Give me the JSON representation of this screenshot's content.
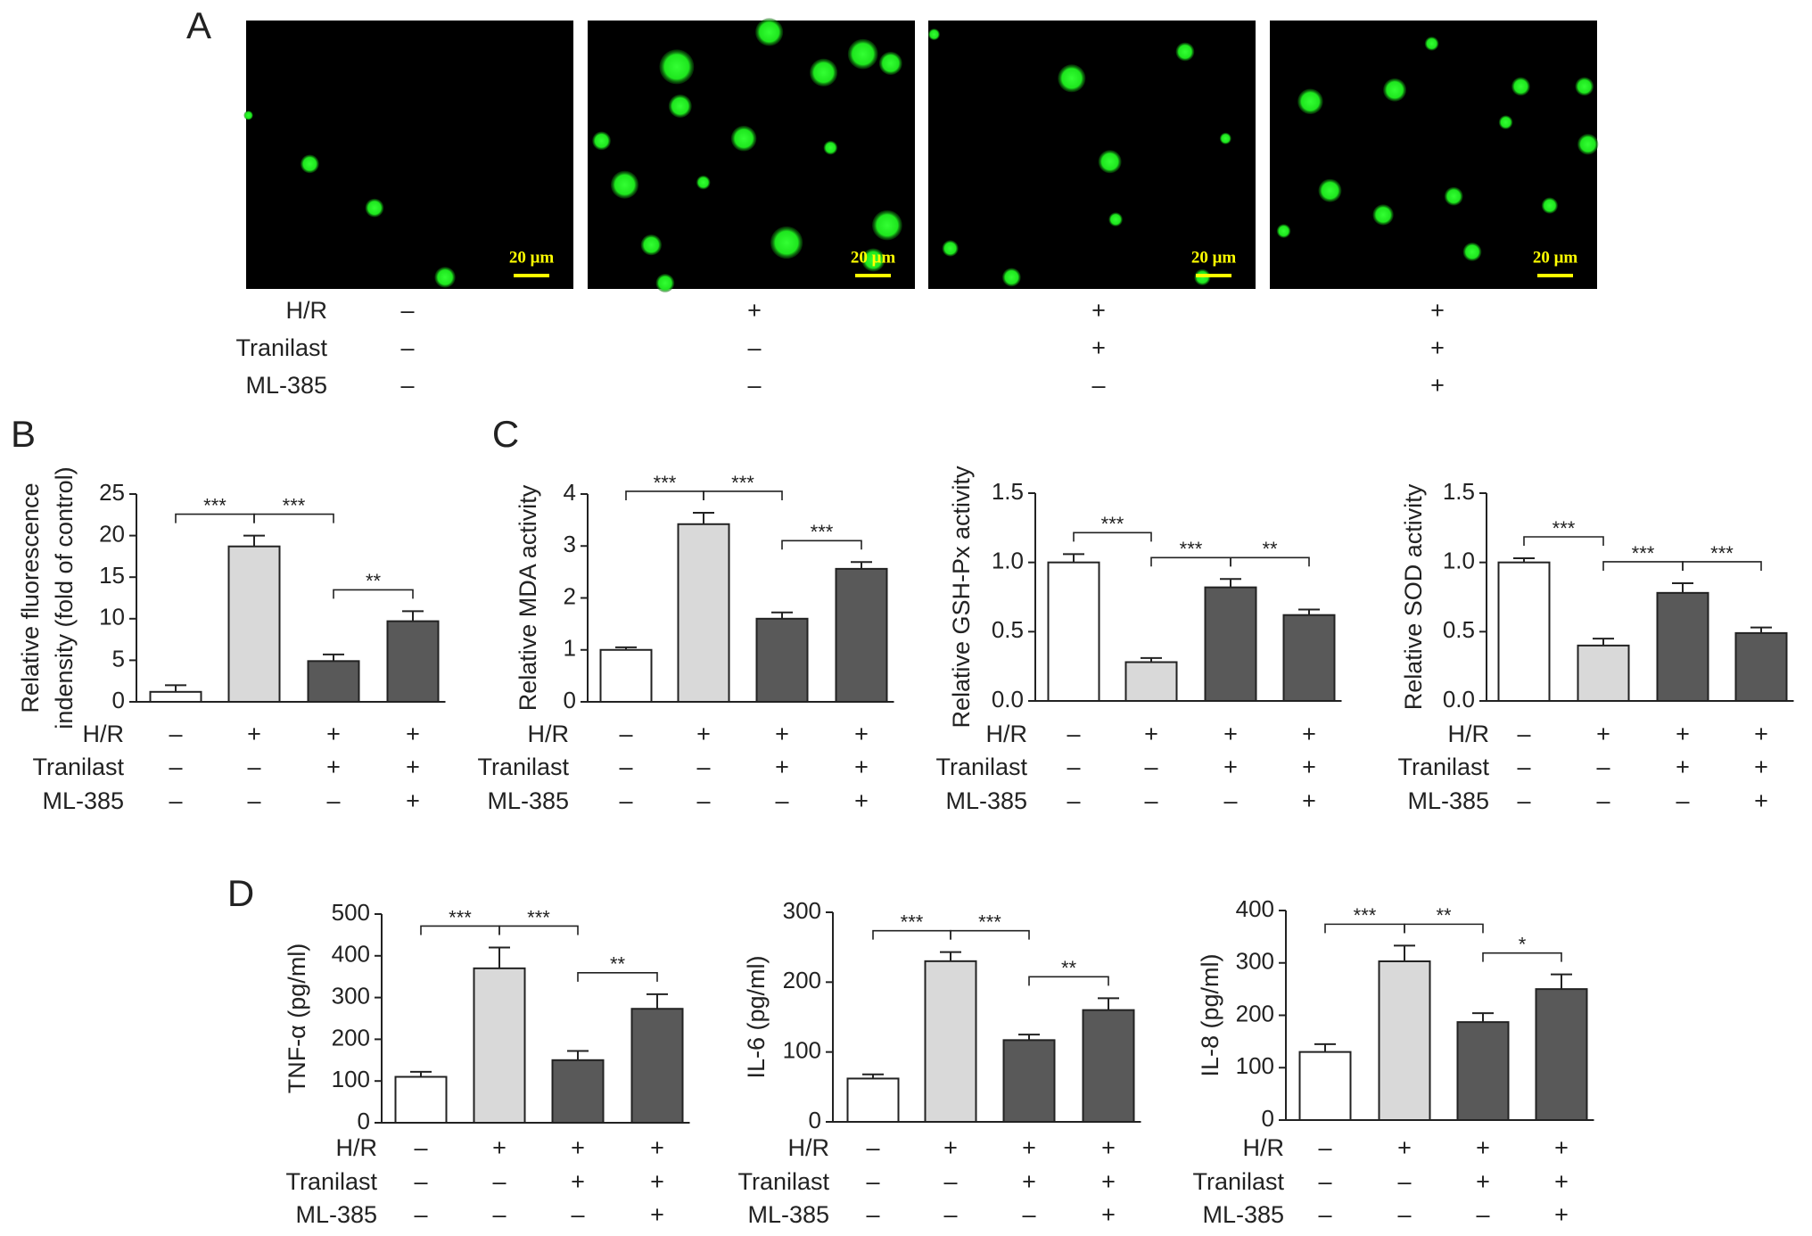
{
  "panel_a": {
    "label": "A",
    "scale_bars": [
      "20 μm",
      "20 μm",
      "20 μm",
      "20 μm"
    ],
    "treatments": [
      {
        "name": "H/R",
        "signs": [
          "–",
          "+",
          "+",
          "+"
        ]
      },
      {
        "name": "Tranilast",
        "signs": [
          "–",
          "–",
          "+",
          "+"
        ]
      },
      {
        "name": "ML-385",
        "signs": [
          "–",
          "–",
          "–",
          "+"
        ]
      }
    ]
  },
  "chart_data": [
    {
      "type": "bar",
      "panel": "B",
      "ylabel": [
        "Relative fluorescence",
        "indensity (fold of control)"
      ],
      "values": [
        1.2,
        18.7,
        4.9,
        9.7
      ],
      "errors": [
        0.8,
        1.3,
        0.8,
        1.2
      ],
      "colors": [
        "#ffffff",
        "#d9d9d9",
        "#595959",
        "#595959"
      ],
      "ylim": [
        0,
        25
      ],
      "yticks": [
        0,
        5,
        10,
        15,
        20,
        25
      ],
      "annotations": [
        {
          "from": 0,
          "to": 1,
          "text": "***"
        },
        {
          "from": 1,
          "to": 2,
          "text": "***"
        },
        {
          "from": 2,
          "to": 3,
          "text": "**"
        }
      ],
      "treatments": [
        {
          "name": "H/R",
          "signs": [
            "–",
            "+",
            "+",
            "+"
          ]
        },
        {
          "name": "Tranilast",
          "signs": [
            "–",
            "–",
            "+",
            "+"
          ]
        },
        {
          "name": "ML-385",
          "signs": [
            "–",
            "–",
            "–",
            "+"
          ]
        }
      ]
    },
    {
      "type": "bar",
      "panel": "C",
      "ylabel": "Relative MDA activity",
      "values": [
        1.0,
        3.42,
        1.6,
        2.56
      ],
      "errors": [
        0.05,
        0.22,
        0.12,
        0.13
      ],
      "colors": [
        "#ffffff",
        "#d9d9d9",
        "#595959",
        "#595959"
      ],
      "ylim": [
        0,
        4
      ],
      "yticks": [
        0,
        1,
        2,
        3,
        4
      ],
      "annotations": [
        {
          "from": 0,
          "to": 1,
          "text": "***"
        },
        {
          "from": 1,
          "to": 2,
          "text": "***"
        },
        {
          "from": 2,
          "to": 3,
          "text": "***"
        }
      ],
      "treatments": [
        {
          "name": "H/R",
          "signs": [
            "–",
            "+",
            "+",
            "+"
          ]
        },
        {
          "name": "Tranilast",
          "signs": [
            "–",
            "–",
            "+",
            "+"
          ]
        },
        {
          "name": "ML-385",
          "signs": [
            "–",
            "–",
            "–",
            "+"
          ]
        }
      ]
    },
    {
      "type": "bar",
      "ylabel": "Relative GSH-Px activity",
      "values": [
        1.0,
        0.28,
        0.82,
        0.62
      ],
      "errors": [
        0.06,
        0.03,
        0.06,
        0.04
      ],
      "colors": [
        "#ffffff",
        "#d9d9d9",
        "#595959",
        "#595959"
      ],
      "ylim": [
        0,
        1.5
      ],
      "yticks": [
        {
          "value": 0,
          "label": "0.0"
        },
        0.5,
        {
          "value": 1,
          "label": "1.0"
        },
        1.5
      ],
      "annotations": [
        {
          "from": 0,
          "to": 1,
          "text": "***"
        },
        {
          "from": 1,
          "to": 2,
          "text": "***"
        },
        {
          "from": 2,
          "to": 3,
          "text": "**"
        }
      ],
      "treatments": [
        {
          "name": "H/R",
          "signs": [
            "–",
            "+",
            "+",
            "+"
          ]
        },
        {
          "name": "Tranilast",
          "signs": [
            "–",
            "–",
            "+",
            "+"
          ]
        },
        {
          "name": "ML-385",
          "signs": [
            "–",
            "–",
            "–",
            "+"
          ]
        }
      ]
    },
    {
      "type": "bar",
      "ylabel": "Relative SOD activity",
      "values": [
        1.0,
        0.4,
        0.78,
        0.49
      ],
      "errors": [
        0.03,
        0.05,
        0.07,
        0.04
      ],
      "colors": [
        "#ffffff",
        "#d9d9d9",
        "#595959",
        "#595959"
      ],
      "ylim": [
        0,
        1.5
      ],
      "yticks": [
        {
          "value": 0,
          "label": "0.0"
        },
        0.5,
        {
          "value": 1,
          "label": "1.0"
        },
        1.5
      ],
      "annotations": [
        {
          "from": 0,
          "to": 1,
          "text": "***"
        },
        {
          "from": 1,
          "to": 2,
          "text": "***"
        },
        {
          "from": 2,
          "to": 3,
          "text": "***"
        }
      ],
      "treatments": [
        {
          "name": "H/R",
          "signs": [
            "–",
            "+",
            "+",
            "+"
          ]
        },
        {
          "name": "Tranilast",
          "signs": [
            "–",
            "–",
            "+",
            "+"
          ]
        },
        {
          "name": "ML-385",
          "signs": [
            "–",
            "–",
            "–",
            "+"
          ]
        }
      ]
    },
    {
      "type": "bar",
      "panel": "D",
      "ylabel": "TNF-α (pg/ml)",
      "values": [
        110,
        370,
        150,
        273
      ],
      "errors": [
        12,
        50,
        22,
        35
      ],
      "colors": [
        "#ffffff",
        "#d9d9d9",
        "#595959",
        "#595959"
      ],
      "ylim": [
        0,
        500
      ],
      "yticks": [
        0,
        100,
        200,
        300,
        400,
        500
      ],
      "annotations": [
        {
          "from": 0,
          "to": 1,
          "text": "***"
        },
        {
          "from": 1,
          "to": 2,
          "text": "***"
        },
        {
          "from": 2,
          "to": 3,
          "text": "**"
        }
      ],
      "treatments": [
        {
          "name": "H/R",
          "signs": [
            "–",
            "+",
            "+",
            "+"
          ]
        },
        {
          "name": "Tranilast",
          "signs": [
            "–",
            "–",
            "+",
            "+"
          ]
        },
        {
          "name": "ML-385",
          "signs": [
            "–",
            "–",
            "–",
            "+"
          ]
        }
      ]
    },
    {
      "type": "bar",
      "ylabel": "IL-6 (pg/ml)",
      "values": [
        62,
        230,
        117,
        160
      ],
      "errors": [
        6,
        13,
        8,
        17
      ],
      "colors": [
        "#ffffff",
        "#d9d9d9",
        "#595959",
        "#595959"
      ],
      "ylim": [
        0,
        300
      ],
      "yticks": [
        0,
        100,
        200,
        300
      ],
      "annotations": [
        {
          "from": 0,
          "to": 1,
          "text": "***"
        },
        {
          "from": 1,
          "to": 2,
          "text": "***"
        },
        {
          "from": 2,
          "to": 3,
          "text": "**"
        }
      ],
      "treatments": [
        {
          "name": "H/R",
          "signs": [
            "–",
            "+",
            "+",
            "+"
          ]
        },
        {
          "name": "Tranilast",
          "signs": [
            "–",
            "–",
            "+",
            "+"
          ]
        },
        {
          "name": "ML-385",
          "signs": [
            "–",
            "–",
            "–",
            "+"
          ]
        }
      ]
    },
    {
      "type": "bar",
      "ylabel": "IL-8 (pg/ml)",
      "values": [
        130,
        303,
        187,
        250
      ],
      "errors": [
        15,
        30,
        17,
        28
      ],
      "colors": [
        "#ffffff",
        "#d9d9d9",
        "#595959",
        "#595959"
      ],
      "ylim": [
        0,
        400
      ],
      "yticks": [
        0,
        100,
        200,
        300,
        400
      ],
      "annotations": [
        {
          "from": 0,
          "to": 1,
          "text": "***"
        },
        {
          "from": 1,
          "to": 2,
          "text": "**"
        },
        {
          "from": 2,
          "to": 3,
          "text": "*"
        }
      ],
      "treatments": [
        {
          "name": "H/R",
          "signs": [
            "–",
            "+",
            "+",
            "+"
          ]
        },
        {
          "name": "Tranilast",
          "signs": [
            "–",
            "–",
            "+",
            "+"
          ]
        },
        {
          "name": "ML-385",
          "signs": [
            "–",
            "–",
            "–",
            "+"
          ]
        }
      ]
    }
  ]
}
